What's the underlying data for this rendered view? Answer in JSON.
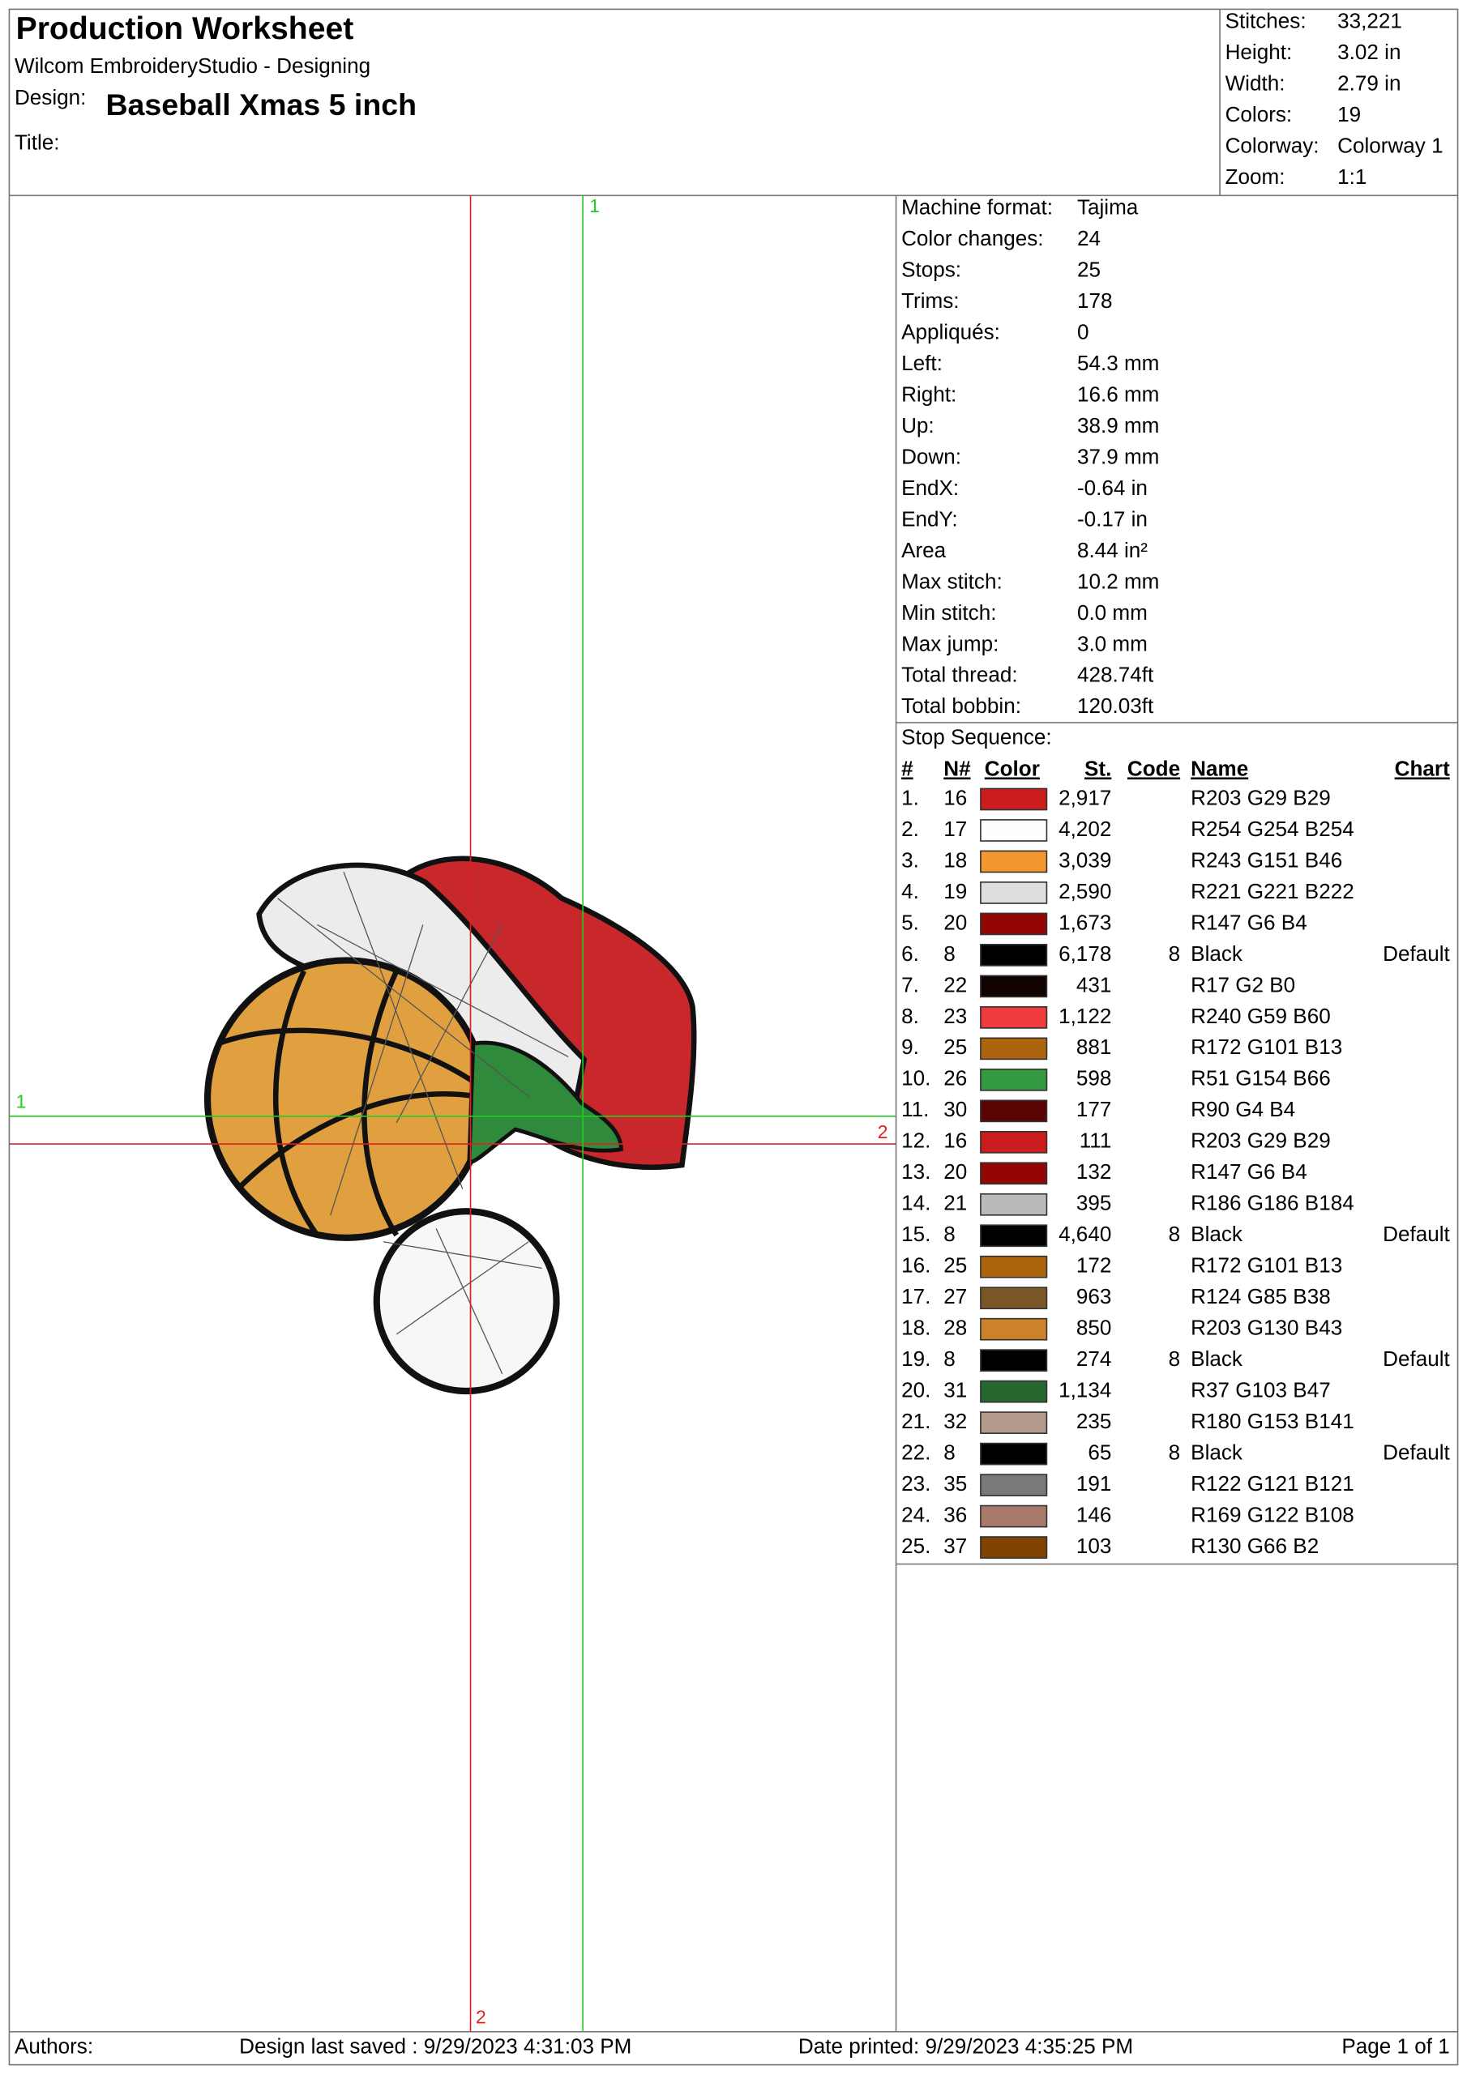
{
  "header": {
    "title": "Production Worksheet",
    "subtitle": "Wilcom EmbroideryStudio - Designing",
    "design_label": "Design:",
    "design": "Baseball Xmas 5 inch",
    "title_label": "Title:"
  },
  "stats": [
    {
      "label": "Stitches:",
      "value": "33,221"
    },
    {
      "label": "Height:",
      "value": "3.02 in"
    },
    {
      "label": "Width:",
      "value": "2.79 in"
    },
    {
      "label": "Colors:",
      "value": "19"
    },
    {
      "label": "Colorway:",
      "value": "Colorway 1"
    },
    {
      "label": "Zoom:",
      "value": "1:1"
    }
  ],
  "machine": [
    {
      "label": "Machine format:",
      "value": "Tajima"
    },
    {
      "label": "Color changes:",
      "value": "24"
    },
    {
      "label": "Stops:",
      "value": "25"
    },
    {
      "label": "Trims:",
      "value": "178"
    },
    {
      "label": "Appliqués:",
      "value": "0"
    },
    {
      "label": "Left:",
      "value": "54.3 mm"
    },
    {
      "label": "Right:",
      "value": "16.6 mm"
    },
    {
      "label": "Up:",
      "value": "38.9 mm"
    },
    {
      "label": "Down:",
      "value": "37.9 mm"
    },
    {
      "label": "EndX:",
      "value": "-0.64 in"
    },
    {
      "label": "EndY:",
      "value": "-0.17 in"
    },
    {
      "label": "Area",
      "value": "8.44 in²"
    },
    {
      "label": "Max stitch:",
      "value": "10.2 mm"
    },
    {
      "label": "Min stitch:",
      "value": "0.0 mm"
    },
    {
      "label": "Max jump:",
      "value": "3.0 mm"
    },
    {
      "label": "Total thread:",
      "value": "428.74ft"
    },
    {
      "label": "Total bobbin:",
      "value": "120.03ft"
    }
  ],
  "stop_sequence": {
    "title": "Stop Sequence:",
    "columns": [
      "#",
      "N#",
      "Color",
      "St.",
      "Code",
      "Name",
      "Chart"
    ],
    "rows": [
      {
        "index": "1.",
        "needle": "16",
        "swatch": "#cb1d1d",
        "stitches": "2,917",
        "name": "R203 G29 B29"
      },
      {
        "index": "2.",
        "needle": "17",
        "swatch": "#fefefe",
        "stitches": "4,202",
        "name": "R254 G254 B254"
      },
      {
        "index": "3.",
        "needle": "18",
        "swatch": "#f3972e",
        "stitches": "3,039",
        "name": "R243 G151 B46"
      },
      {
        "index": "4.",
        "needle": "19",
        "swatch": "#ddddde",
        "stitches": "2,590",
        "name": "R221 G221 B222"
      },
      {
        "index": "5.",
        "needle": "20",
        "swatch": "#930604",
        "stitches": "1,673",
        "name": "R147 G6 B4"
      },
      {
        "index": "6.",
        "needle": "8",
        "swatch": "#000000",
        "stitches": "6,178",
        "code": "8",
        "name": "Black",
        "chart": "Default"
      },
      {
        "index": "7.",
        "needle": "22",
        "swatch": "#110200",
        "stitches": "431",
        "name": "R17 G2 B0"
      },
      {
        "index": "8.",
        "needle": "23",
        "swatch": "#f03b3c",
        "stitches": "1,122",
        "name": "R240 G59 B60"
      },
      {
        "index": "9.",
        "needle": "25",
        "swatch": "#ac650d",
        "stitches": "881",
        "name": "R172 G101 B13"
      },
      {
        "index": "10.",
        "needle": "26",
        "swatch": "#339a42",
        "stitches": "598",
        "name": "R51 G154 B66"
      },
      {
        "index": "11.",
        "needle": "30",
        "swatch": "#5a0404",
        "stitches": "177",
        "name": "R90 G4 B4"
      },
      {
        "index": "12.",
        "needle": "16",
        "swatch": "#cb1d1d",
        "stitches": "111",
        "name": "R203 G29 B29"
      },
      {
        "index": "13.",
        "needle": "20",
        "swatch": "#930604",
        "stitches": "132",
        "name": "R147 G6 B4"
      },
      {
        "index": "14.",
        "needle": "21",
        "swatch": "#babab8",
        "stitches": "395",
        "name": "R186 G186 B184"
      },
      {
        "index": "15.",
        "needle": "8",
        "swatch": "#000000",
        "stitches": "4,640",
        "code": "8",
        "name": "Black",
        "chart": "Default"
      },
      {
        "index": "16.",
        "needle": "25",
        "swatch": "#ac650d",
        "stitches": "172",
        "name": "R172 G101 B13"
      },
      {
        "index": "17.",
        "needle": "27",
        "swatch": "#7c5526",
        "stitches": "963",
        "name": "R124 G85 B38"
      },
      {
        "index": "18.",
        "needle": "28",
        "swatch": "#cb822b",
        "stitches": "850",
        "name": "R203 G130 B43"
      },
      {
        "index": "19.",
        "needle": "8",
        "swatch": "#000000",
        "stitches": "274",
        "code": "8",
        "name": "Black",
        "chart": "Default"
      },
      {
        "index": "20.",
        "needle": "31",
        "swatch": "#25672f",
        "stitches": "1,134",
        "name": "R37 G103 B47"
      },
      {
        "index": "21.",
        "needle": "32",
        "swatch": "#b4998d",
        "stitches": "235",
        "name": "R180 G153 B141"
      },
      {
        "index": "22.",
        "needle": "8",
        "swatch": "#000000",
        "stitches": "65",
        "code": "8",
        "name": "Black",
        "chart": "Default"
      },
      {
        "index": "23.",
        "needle": "35",
        "swatch": "#7a7979",
        "stitches": "191",
        "name": "R122 G121 B121"
      },
      {
        "index": "24.",
        "needle": "36",
        "swatch": "#a97a6c",
        "stitches": "146",
        "name": "R169 G122 B108"
      },
      {
        "index": "25.",
        "needle": "37",
        "swatch": "#824202",
        "stitches": "103",
        "name": "R130 G66 B2"
      }
    ]
  },
  "crosshairs": {
    "green_top": "1",
    "green_left": "1",
    "red_bottom": "2",
    "red_right": "2"
  },
  "footer": {
    "authors": "Authors:",
    "saved": "Design last saved : 9/29/2023 4:31:03 PM",
    "printed": "Date printed: 9/29/2023 4:35:25 PM",
    "page": "Page 1 of 1"
  }
}
